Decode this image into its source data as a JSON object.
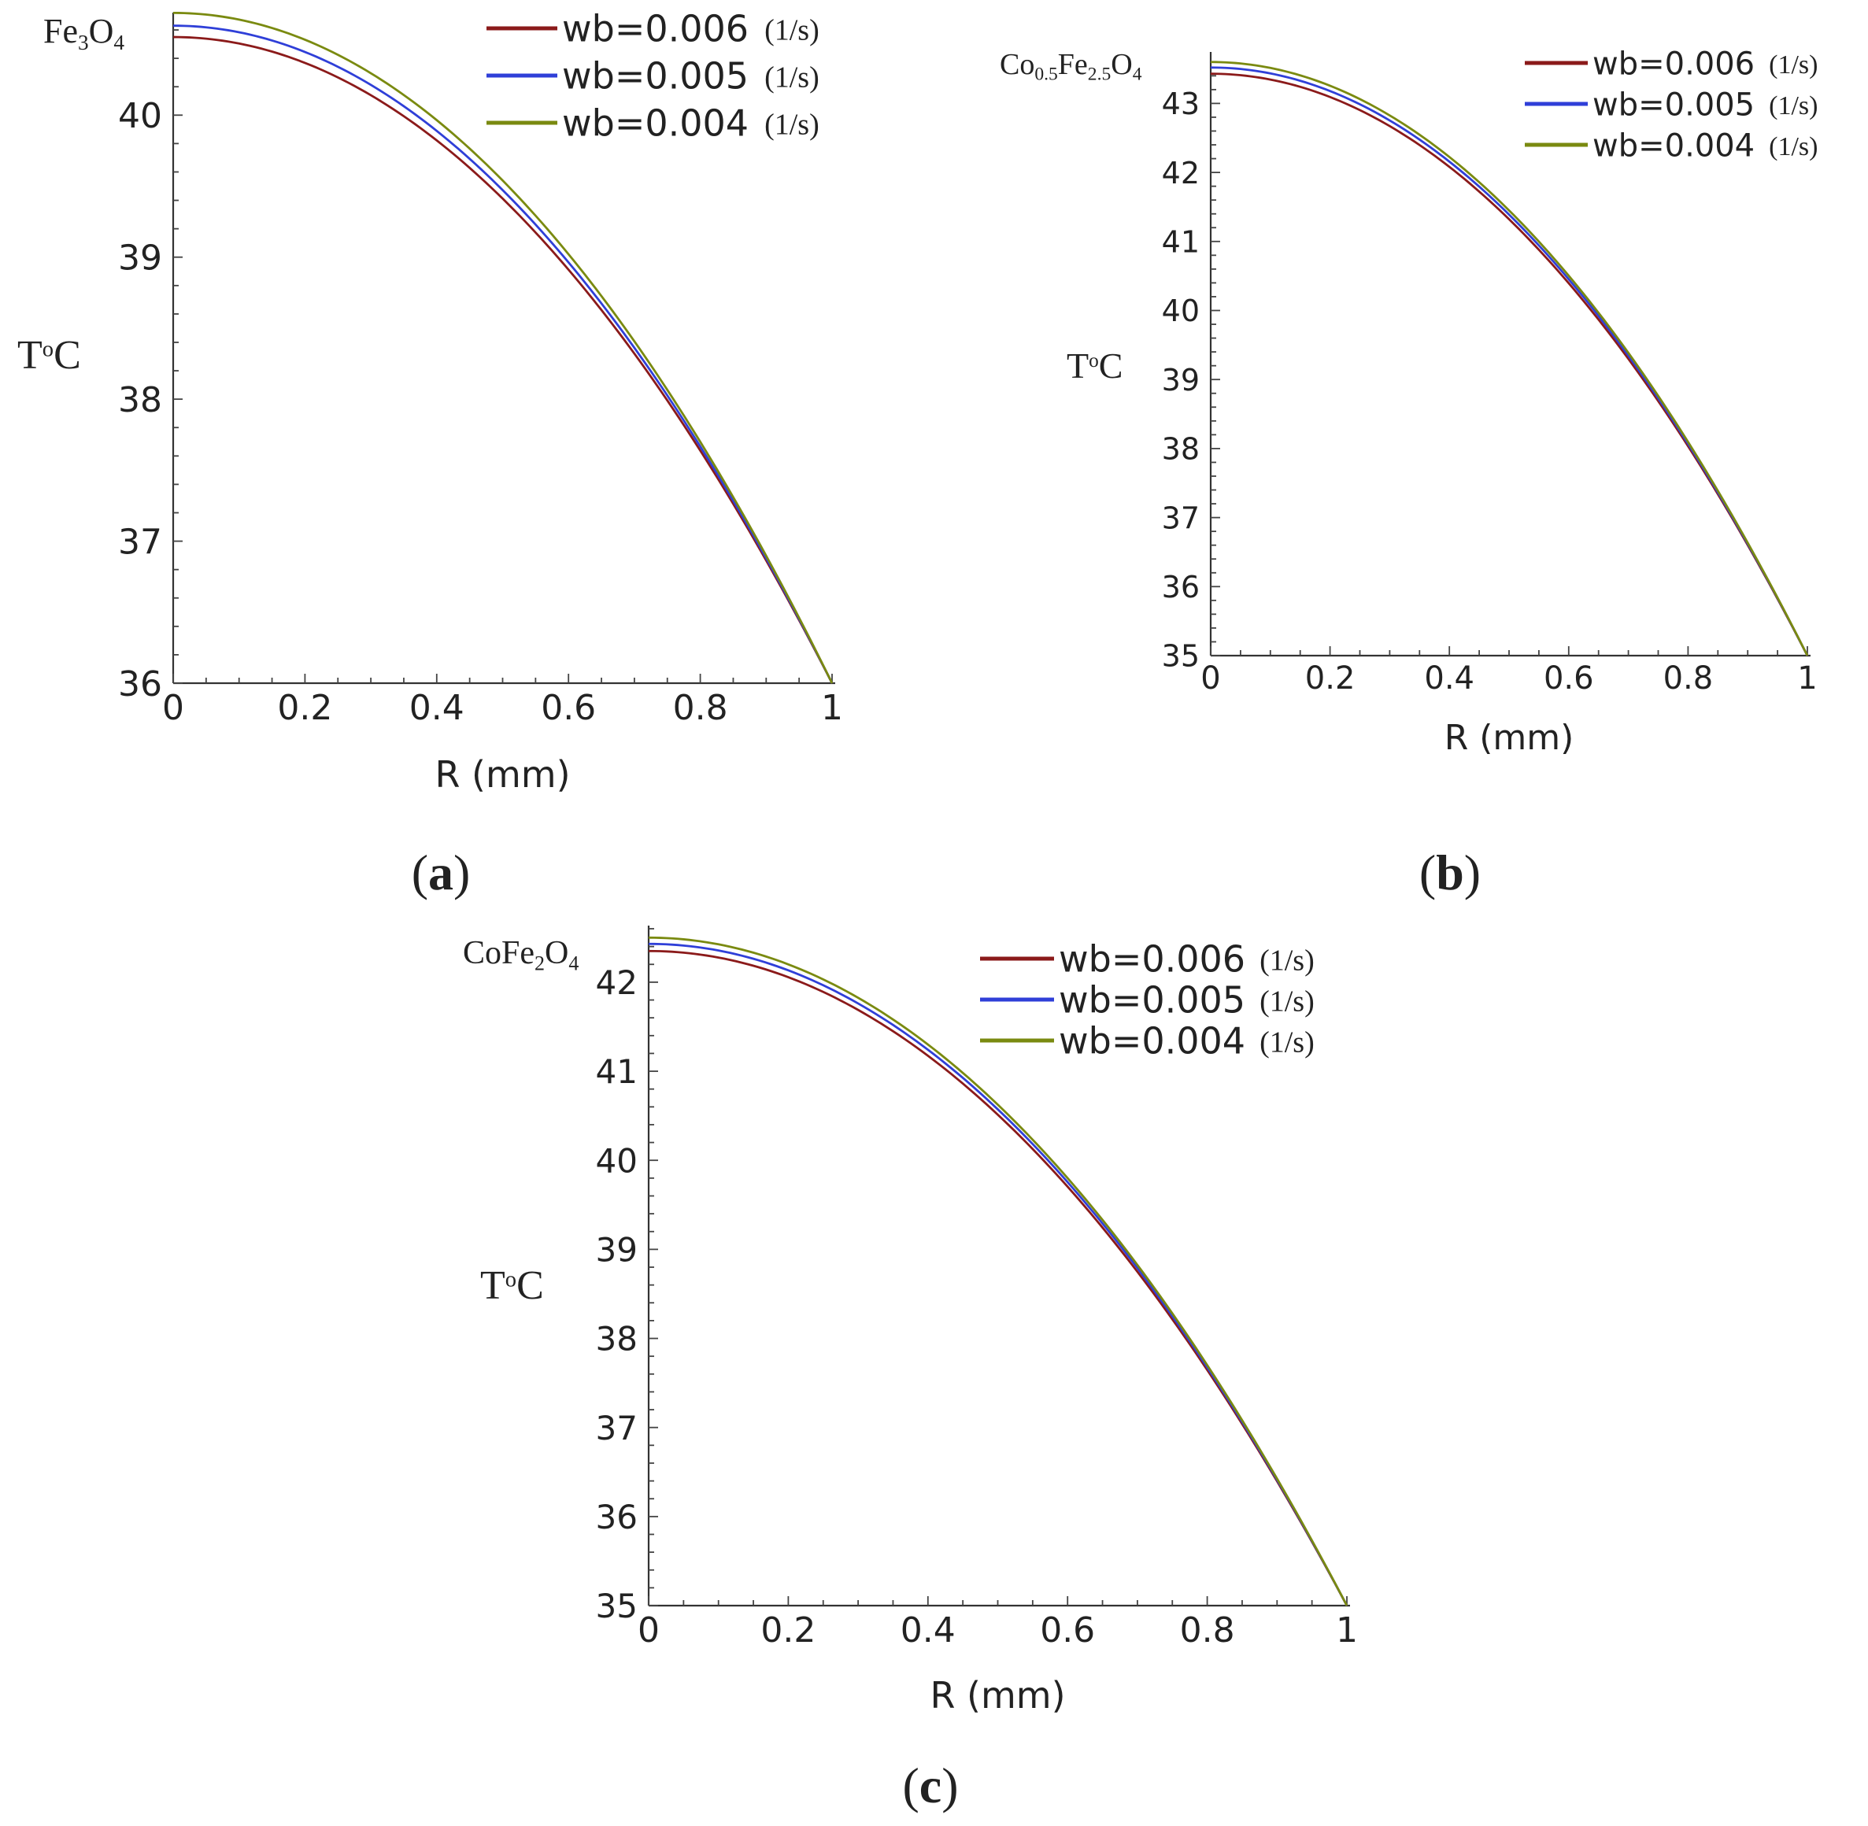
{
  "figure": {
    "colors": {
      "wb_0.006": "#8b1a1a",
      "wb_0.005": "#2f3fd8",
      "wb_0.004": "#7a8a10"
    },
    "legend_unit": "(1/s)"
  },
  "chart_data": [
    {
      "id": "a",
      "type": "line",
      "panel_label_open": "(",
      "panel_label_letter": "a",
      "panel_label_close": ")",
      "material_main": [
        "Fe",
        "O"
      ],
      "material_sub": [
        "3",
        "4"
      ],
      "ylabel_T": "T",
      "ylabel_o": "o",
      "ylabel_C": "C",
      "xlabel": "R (mm)",
      "xlim": [
        0,
        1
      ],
      "ylim": [
        36,
        40.7
      ],
      "x_ticks": [
        "0",
        "0.2",
        "0.4",
        "0.6",
        "0.8",
        "1"
      ],
      "y_ticks": [
        "36",
        "37",
        "38",
        "39",
        "40"
      ],
      "x_tick_values": [
        0,
        0.2,
        0.4,
        0.6,
        0.8,
        1
      ],
      "y_tick_values": [
        36,
        37,
        38,
        39,
        40
      ],
      "legend_position": "top-right",
      "series": [
        {
          "name": "wb=0.006",
          "unit": "(1/s)",
          "color": "#8b1a1a",
          "T0": 40.55,
          "Tw": 36.0
        },
        {
          "name": "wb=0.005",
          "unit": "(1/s)",
          "color": "#2f3fd8",
          "T0": 40.63,
          "Tw": 36.0
        },
        {
          "name": "wb=0.004",
          "unit": "(1/s)",
          "color": "#7a8a10",
          "T0": 40.72,
          "Tw": 36.0
        }
      ]
    },
    {
      "id": "b",
      "type": "line",
      "panel_label_open": "(",
      "panel_label_letter": "b",
      "panel_label_close": ")",
      "material_main": [
        "Co",
        "Fe",
        "O"
      ],
      "material_sub": [
        "0.5",
        "2.5",
        "4"
      ],
      "ylabel_T": "T",
      "ylabel_o": "o",
      "ylabel_C": "C",
      "xlabel": "R (mm)",
      "xlim": [
        0,
        1
      ],
      "ylim": [
        35,
        43.7
      ],
      "x_ticks": [
        "0",
        "0.2",
        "0.4",
        "0.6",
        "0.8",
        "1"
      ],
      "y_ticks": [
        "35",
        "36",
        "37",
        "38",
        "39",
        "40",
        "41",
        "42",
        "43"
      ],
      "x_tick_values": [
        0,
        0.2,
        0.4,
        0.6,
        0.8,
        1
      ],
      "y_tick_values": [
        35,
        36,
        37,
        38,
        39,
        40,
        41,
        42,
        43
      ],
      "legend_position": "top-right",
      "series": [
        {
          "name": "wb=0.006",
          "unit": "(1/s)",
          "color": "#8b1a1a",
          "T0": 43.43,
          "Tw": 35.0
        },
        {
          "name": "wb=0.005",
          "unit": "(1/s)",
          "color": "#2f3fd8",
          "T0": 43.52,
          "Tw": 35.0
        },
        {
          "name": "wb=0.004",
          "unit": "(1/s)",
          "color": "#7a8a10",
          "T0": 43.6,
          "Tw": 35.0
        }
      ]
    },
    {
      "id": "c",
      "type": "line",
      "panel_label_open": "(",
      "panel_label_letter": "c",
      "panel_label_close": ")",
      "material_main": [
        "CoFe",
        "O"
      ],
      "material_sub": [
        "2",
        "4"
      ],
      "ylabel_T": "T",
      "ylabel_o": "o",
      "ylabel_C": "C",
      "xlabel": "R (mm)",
      "xlim": [
        0,
        1
      ],
      "ylim": [
        35,
        42.6
      ],
      "x_ticks": [
        "0",
        "0.2",
        "0.4",
        "0.6",
        "0.8",
        "1"
      ],
      "y_ticks": [
        "35",
        "36",
        "37",
        "38",
        "39",
        "40",
        "41",
        "42"
      ],
      "x_tick_values": [
        0,
        0.2,
        0.4,
        0.6,
        0.8,
        1
      ],
      "y_tick_values": [
        35,
        36,
        37,
        38,
        39,
        40,
        41,
        42
      ],
      "legend_position": "top-right",
      "series": [
        {
          "name": "wb=0.006",
          "unit": "(1/s)",
          "color": "#8b1a1a",
          "T0": 42.35,
          "Tw": 35.0
        },
        {
          "name": "wb=0.005",
          "unit": "(1/s)",
          "color": "#2f3fd8",
          "T0": 42.43,
          "Tw": 35.0
        },
        {
          "name": "wb=0.004",
          "unit": "(1/s)",
          "color": "#7a8a10",
          "T0": 42.5,
          "Tw": 35.0
        }
      ]
    }
  ]
}
